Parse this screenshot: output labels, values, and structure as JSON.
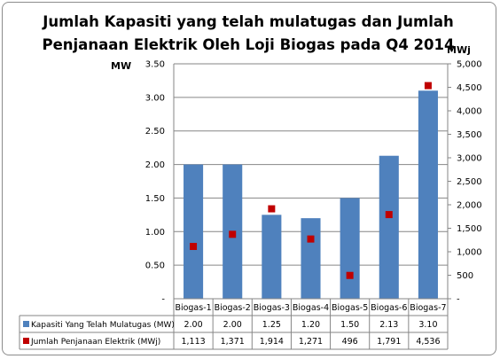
{
  "chart_data": {
    "type": "bar",
    "title_line1": "Jumlah Kapasiti yang telah mulatugas  dan Jumlah",
    "title_line2": "Penjanaan Elektrik Oleh Loji Biogas  pada Q4 2014",
    "left_unit": "MW",
    "right_unit": "MWj",
    "categories": [
      "Biogas-1",
      "Biogas-2",
      "Biogas-3",
      "Biogas-4",
      "Biogas-5",
      "Biogas-6",
      "Biogas-7"
    ],
    "left_ticks": [
      "-",
      "0.50",
      "1.00",
      "1.50",
      "2.00",
      "2.50",
      "3.00",
      "3.50"
    ],
    "right_ticks": [
      "-",
      "500",
      "1,000",
      "1,500",
      "2,000",
      "2,500",
      "3,000",
      "3,500",
      "4,000",
      "4,500",
      "5,000"
    ],
    "ylim_left": [
      0,
      3.5
    ],
    "ylim_right": [
      0,
      5000
    ],
    "grid": true,
    "series": [
      {
        "name": "Kapasiti Yang Telah Mulatugas (MW)",
        "kind": "bar",
        "axis": "left",
        "color": "#4f81bd",
        "values": [
          2.0,
          2.0,
          1.25,
          1.2,
          1.5,
          2.13,
          3.1
        ],
        "labels": [
          "2.00",
          "2.00",
          "1.25",
          "1.20",
          "1.50",
          "2.13",
          "3.10"
        ]
      },
      {
        "name": "Jumlah Penjanaan Elektrik (MWj)",
        "kind": "marker",
        "axis": "right",
        "color": "#c00000",
        "values": [
          1113,
          1371,
          1914,
          1271,
          496,
          1791,
          4536
        ],
        "labels": [
          "1,113",
          "1,371",
          "1,914",
          "1,271",
          "496",
          "1,791",
          "4,536"
        ]
      }
    ]
  }
}
